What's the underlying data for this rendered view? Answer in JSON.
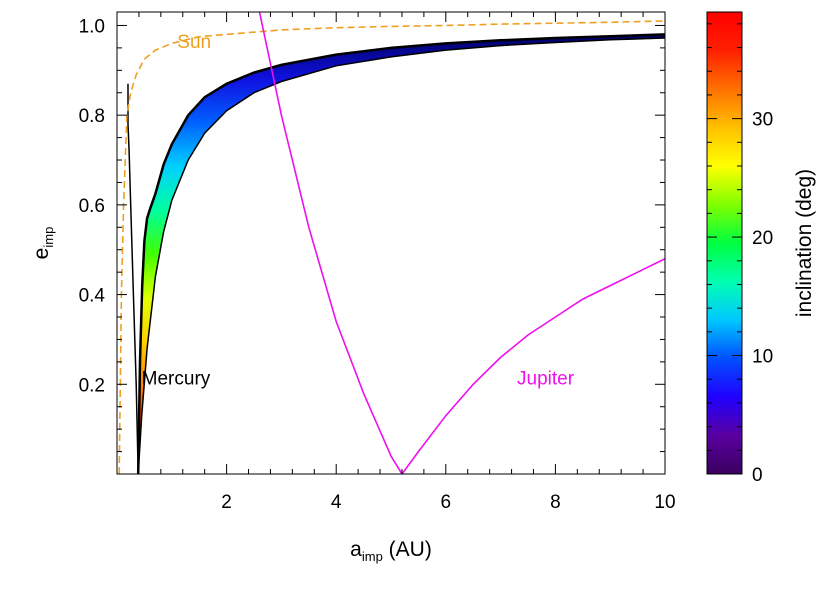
{
  "chart_data": {
    "type": "line",
    "xlabel": {
      "main": "a",
      "sub": "imp",
      "suffix": " (AU)"
    },
    "ylabel": {
      "main": "e",
      "sub": "imp"
    },
    "xlim": [
      0,
      10
    ],
    "ylim": [
      0,
      1.03
    ],
    "x_ticks": [
      {
        "value": 2,
        "label": "2"
      },
      {
        "value": 4,
        "label": "4"
      },
      {
        "value": 6,
        "label": "6"
      },
      {
        "value": 8,
        "label": "8"
      },
      {
        "value": 10,
        "label": "10"
      }
    ],
    "y_ticks": [
      {
        "value": 0.2,
        "label": "0.2"
      },
      {
        "value": 0.4,
        "label": "0.4"
      },
      {
        "value": 0.6,
        "label": "0.6"
      },
      {
        "value": 0.8,
        "label": "0.8"
      },
      {
        "value": 1.0,
        "label": "1.0"
      }
    ],
    "series": [
      {
        "name": "Sun",
        "color": "#f0a020",
        "dash": true,
        "x": [
          0.04,
          0.08,
          0.12,
          0.18,
          0.25,
          0.35,
          0.5,
          0.7,
          1.0,
          1.5,
          2,
          3,
          4,
          5,
          6,
          7,
          8,
          9,
          10
        ],
        "y": [
          0.0,
          0.4,
          0.6,
          0.8,
          0.85,
          0.89,
          0.925,
          0.945,
          0.96,
          0.975,
          0.98,
          0.99,
          0.995,
          0.998,
          1.0,
          1.003,
          1.005,
          1.007,
          1.01
        ]
      },
      {
        "name": "Jupiter",
        "color": "#ee10ee",
        "dash": false,
        "x": [
          2.6,
          3.0,
          3.5,
          4.0,
          4.5,
          5.0,
          5.2,
          5.5,
          6.0,
          6.5,
          7.0,
          7.5,
          8.0,
          8.5,
          9.0,
          9.5,
          10.0
        ],
        "y": [
          1.03,
          0.8,
          0.55,
          0.34,
          0.18,
          0.04,
          0.0,
          0.05,
          0.13,
          0.2,
          0.26,
          0.31,
          0.35,
          0.39,
          0.42,
          0.45,
          0.48
        ]
      }
    ],
    "mercury_band": {
      "name": "Mercury",
      "min_point": {
        "x": 0.387,
        "y": 0.0
      },
      "upper_x": [
        0.387,
        0.42,
        0.46,
        0.5,
        0.55,
        0.6,
        0.7,
        0.85,
        1.0,
        1.3,
        1.6,
        2,
        2.5,
        3,
        4,
        5,
        6,
        7,
        8,
        9,
        10
      ],
      "upper_y": [
        0.0,
        0.25,
        0.42,
        0.52,
        0.57,
        0.59,
        0.625,
        0.69,
        0.735,
        0.8,
        0.84,
        0.87,
        0.895,
        0.912,
        0.935,
        0.95,
        0.96,
        0.967,
        0.972,
        0.976,
        0.98
      ],
      "lower_x": [
        0.387,
        0.45,
        0.55,
        0.7,
        0.85,
        1.0,
        1.3,
        1.6,
        2,
        2.5,
        3,
        4,
        5,
        6,
        7,
        8,
        9,
        10
      ],
      "lower_y": [
        0.0,
        0.13,
        0.28,
        0.44,
        0.54,
        0.61,
        0.7,
        0.76,
        0.81,
        0.85,
        0.875,
        0.91,
        0.93,
        0.945,
        0.955,
        0.962,
        0.968,
        0.972
      ],
      "left_x": [
        0.387,
        0.35,
        0.3,
        0.25,
        0.22,
        0.2,
        0.2
      ],
      "left_y": [
        0.0,
        0.2,
        0.4,
        0.6,
        0.72,
        0.78,
        0.87
      ]
    },
    "colorbar": {
      "label": "inclination (deg)",
      "min": 0,
      "max": 39,
      "ticks": [
        {
          "value": 0,
          "label": "0"
        },
        {
          "value": 10,
          "label": "10"
        },
        {
          "value": 20,
          "label": "20"
        },
        {
          "value": 30,
          "label": "30"
        }
      ],
      "colors": [
        "#3a0060",
        "#5a00a0",
        "#2000ff",
        "#0050ff",
        "#00c8ff",
        "#00ffb0",
        "#00ff40",
        "#80ff00",
        "#ffff00",
        "#ffc000",
        "#ff7000",
        "#ff2000",
        "#ff0000"
      ]
    },
    "annotations": [
      {
        "text": "Sun",
        "color": "#f0a020",
        "x": 1.1,
        "y": 0.95
      },
      {
        "text": "Mercury",
        "color": "#000000",
        "x": 0.45,
        "y": 0.2
      },
      {
        "text": "Jupiter",
        "color": "#ee10ee",
        "x": 7.3,
        "y": 0.2
      }
    ]
  }
}
